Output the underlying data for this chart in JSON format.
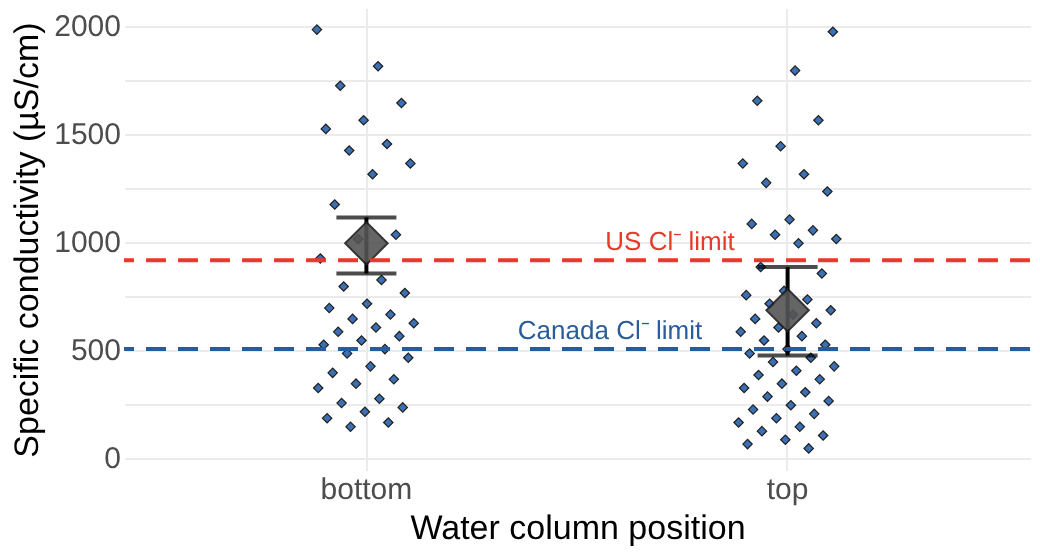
{
  "chart_data": {
    "type": "scatter",
    "xlabel": "Water column position",
    "ylabel": "Specific conductivity (µS/cm)",
    "categories": [
      "bottom",
      "top"
    ],
    "ylim": [
      -60,
      2080
    ],
    "yticks": [
      0,
      {
        "value": 250,
        "label": null
      },
      500,
      {
        "value": 750,
        "label": null
      },
      1000,
      {
        "value": 1250,
        "label": null
      },
      1500,
      {
        "value": 1750,
        "label": null
      },
      2000
    ],
    "grid": true,
    "marker": "diamond",
    "series": [
      {
        "color": "#3b70b5",
        "x": [
          "bottom",
          "bottom",
          "bottom",
          "bottom",
          "bottom",
          "bottom",
          "bottom",
          "bottom",
          "bottom",
          "bottom",
          "bottom",
          "bottom",
          "bottom",
          "bottom",
          "bottom",
          "bottom",
          "bottom",
          "bottom",
          "bottom",
          "bottom",
          "bottom",
          "bottom",
          "bottom",
          "bottom",
          "bottom",
          "bottom",
          "bottom",
          "bottom",
          "bottom",
          "bottom",
          "bottom",
          "bottom",
          "bottom",
          "bottom",
          "bottom",
          "bottom",
          "bottom",
          "bottom",
          "bottom",
          "bottom",
          "bottom",
          "bottom",
          "top",
          "top",
          "top",
          "top",
          "top",
          "top",
          "top",
          "top",
          "top",
          "top",
          "top",
          "top",
          "top",
          "top",
          "top",
          "top",
          "top",
          "top",
          "top",
          "top",
          "top",
          "top",
          "top",
          "top",
          "top",
          "top",
          "top",
          "top",
          "top",
          "top",
          "top",
          "top",
          "top",
          "top",
          "top",
          "top",
          "top",
          "top",
          "top",
          "top",
          "top",
          "top",
          "top",
          "top",
          "top",
          "top",
          "top",
          "top",
          "top",
          "top",
          "top",
          "top",
          "top",
          "top"
        ],
        "values": [
          1980,
          1810,
          1720,
          1640,
          1560,
          1520,
          1450,
          1420,
          1360,
          1310,
          1170,
          1030,
          1010,
          920,
          820,
          790,
          760,
          710,
          690,
          660,
          640,
          620,
          600,
          580,
          560,
          540,
          520,
          500,
          480,
          460,
          420,
          390,
          360,
          340,
          320,
          270,
          250,
          230,
          210,
          180,
          160,
          140,
          1970,
          1790,
          1650,
          1560,
          1440,
          1360,
          1310,
          1270,
          1230,
          1100,
          1080,
          1050,
          1030,
          1010,
          990,
          880,
          850,
          770,
          750,
          730,
          710,
          680,
          660,
          640,
          620,
          600,
          580,
          560,
          540,
          520,
          500,
          480,
          460,
          440,
          420,
          400,
          380,
          360,
          340,
          320,
          300,
          280,
          260,
          240,
          220,
          200,
          180,
          160,
          140,
          120,
          100,
          80,
          60,
          40
        ]
      },
      {
        "color": "#555555",
        "x": [
          "bottom",
          "top"
        ],
        "values": [
          990,
          680
        ],
        "errors": [
          [
            850,
            1110
          ],
          [
            470,
            880
          ]
        ]
      }
    ],
    "ref_lines": [
      {
        "axis": "y",
        "value": 912,
        "label": "US Cl⁻ limit",
        "color": "#e8392b",
        "line_style": "dashed"
      },
      {
        "axis": "y",
        "value": 500,
        "label": "Canada Cl⁻ limit",
        "color": "#2a5c9a",
        "line_style": "dashed"
      }
    ]
  }
}
